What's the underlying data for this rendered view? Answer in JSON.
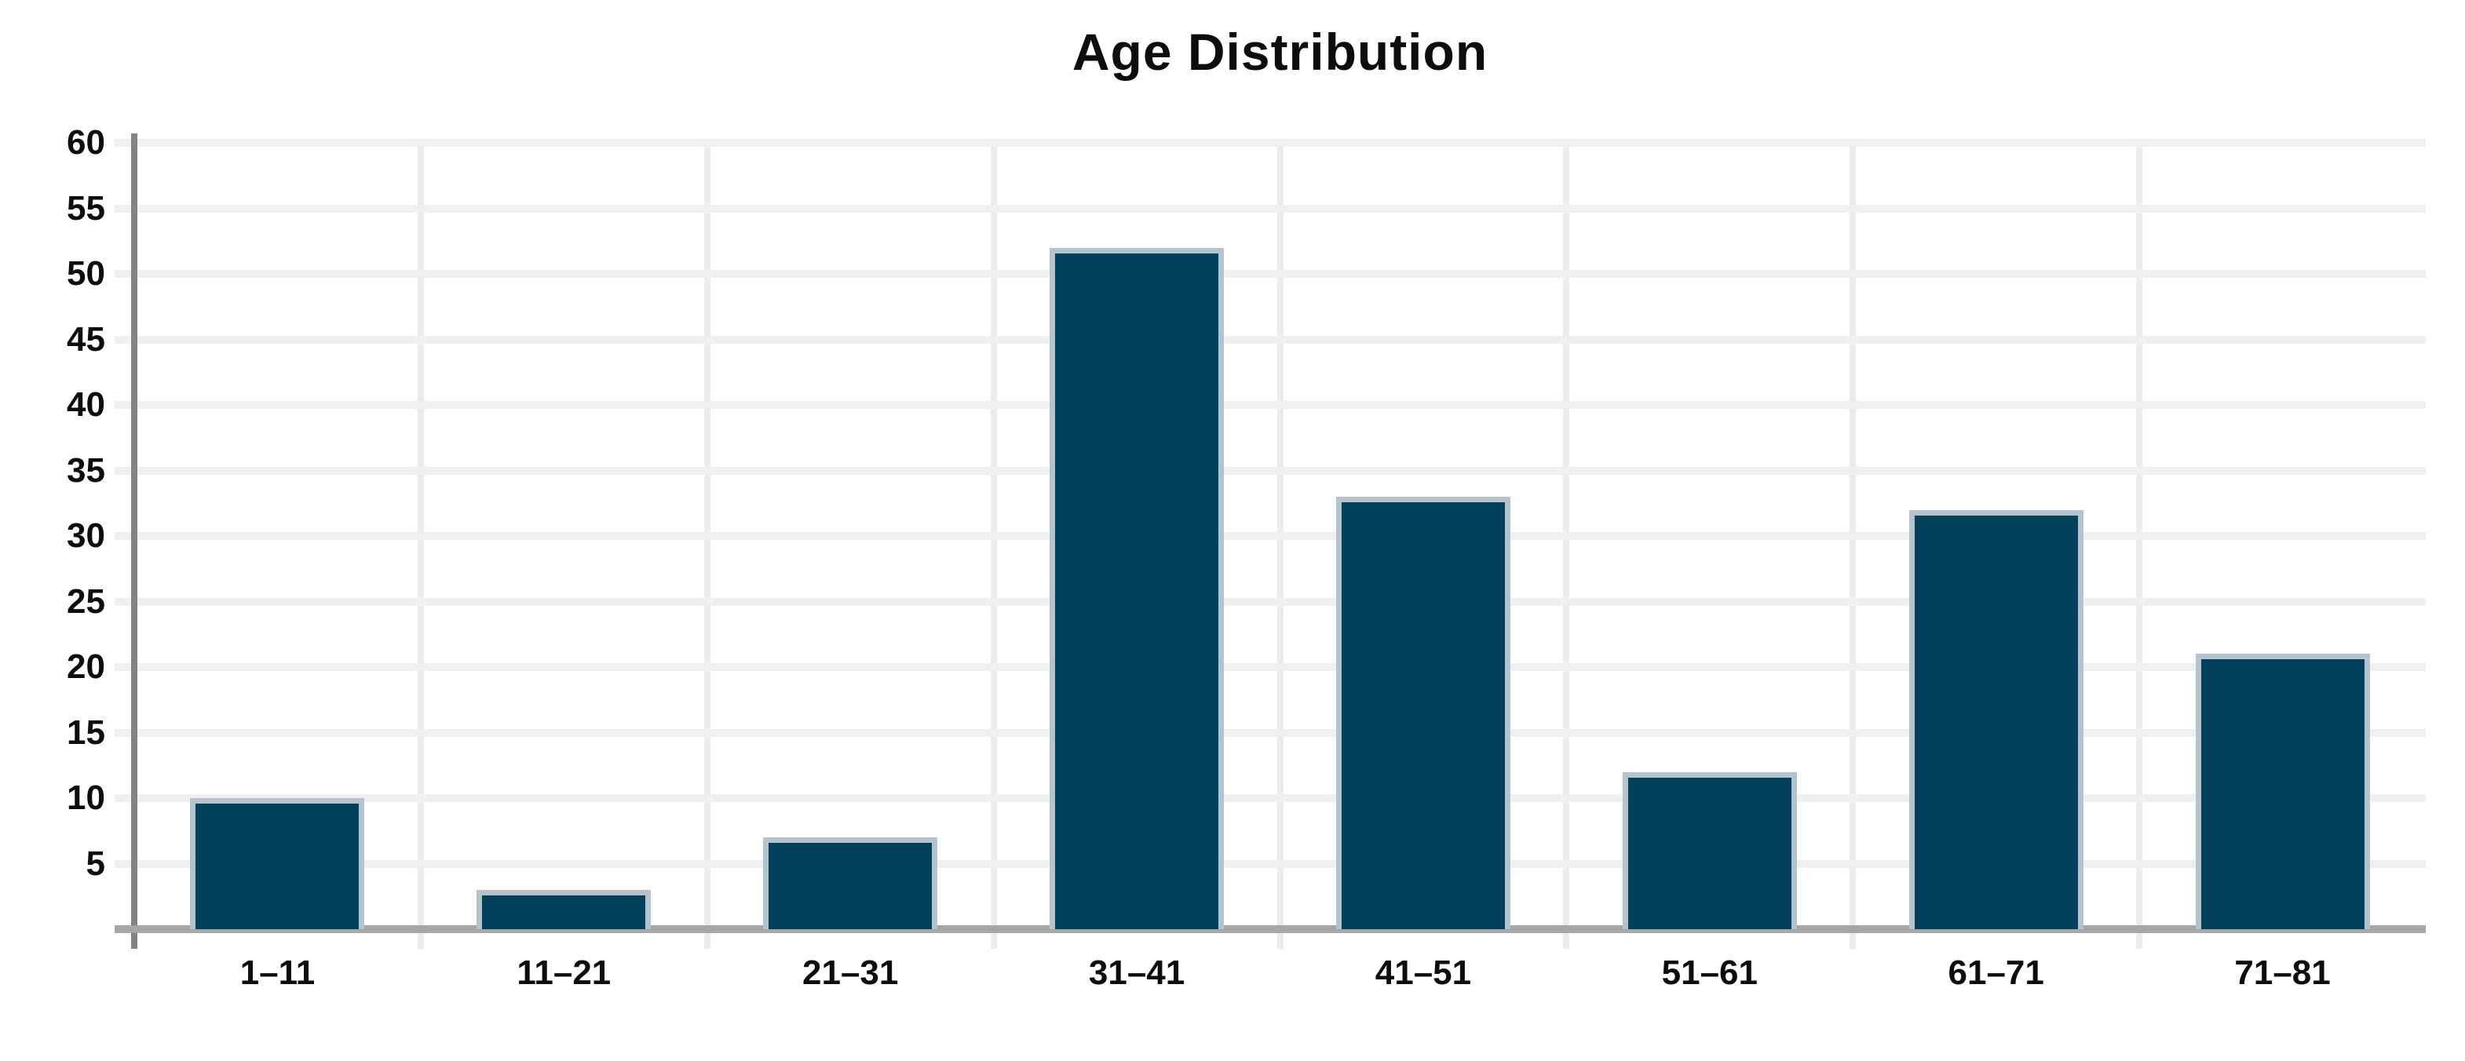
{
  "title": "Age Distribution",
  "chart_data": {
    "type": "bar",
    "title": "Age Distribution",
    "categories": [
      "1–11",
      "11–21",
      "21–31",
      "31–41",
      "41–51",
      "51–61",
      "61–71",
      "71–81"
    ],
    "values": [
      10,
      3,
      7,
      52,
      33,
      12,
      32,
      21
    ],
    "xlabel": "",
    "ylabel": "",
    "ylim": [
      0,
      60
    ],
    "yticks": [
      5,
      10,
      15,
      20,
      25,
      30,
      35,
      40,
      45,
      50,
      55,
      60
    ],
    "grid": true,
    "legend_position": "none",
    "colors": {
      "bar_fill": "#02415c",
      "bar_border": "#b3c4ce",
      "axis_line": "#838383",
      "baseline": "#a6a6a6",
      "h_gridline": "#f0f0f0",
      "v_gridline": "#ececec",
      "text": "#0d0d0d",
      "background": "#ffffff"
    }
  }
}
